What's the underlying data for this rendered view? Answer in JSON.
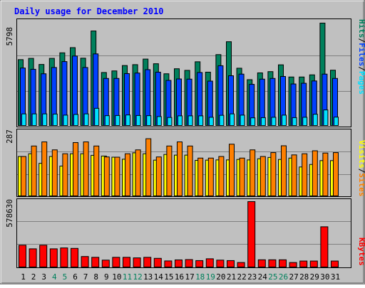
{
  "title": "Daily usage for December 2010",
  "colors": {
    "background": "#C0C0C0",
    "title": "#0000FF",
    "hits": "#00805C",
    "files": "#0040FF",
    "pages": "#00E0FF",
    "visits": "#FFFF00",
    "sites": "#FF8000",
    "kbytes": "#FF0000",
    "weekend_label": "#00805C",
    "weekday_label": "#000000"
  },
  "panels": {
    "top": {
      "max_label": "5798",
      "legend": {
        "pages": "Pages",
        "files": "Files",
        "hits": "Hits",
        "sep": "/"
      }
    },
    "middle": {
      "max_label": "287",
      "legend": {
        "sites": "Sites",
        "visits": "Visits",
        "sep": "/"
      }
    },
    "bottom": {
      "max_label": "578630",
      "legend": {
        "kbytes": "KBytes"
      }
    }
  },
  "chart_data": [
    {
      "type": "bar",
      "title": "Daily usage for December 2010",
      "categories": [
        "1",
        "2",
        "3",
        "4",
        "5",
        "6",
        "7",
        "8",
        "9",
        "10",
        "11",
        "12",
        "13",
        "14",
        "15",
        "16",
        "17",
        "18",
        "19",
        "20",
        "21",
        "22",
        "23",
        "24",
        "25",
        "26",
        "27",
        "28",
        "29",
        "30",
        "31"
      ],
      "weekend_days": [
        "4",
        "5",
        "11",
        "12",
        "18",
        "19",
        "25",
        "26"
      ],
      "ylim": [
        0,
        5798
      ],
      "series": [
        {
          "name": "Hits",
          "values": [
            3680,
            3750,
            3410,
            3750,
            4060,
            4350,
            3760,
            5280,
            2960,
            3050,
            3350,
            3400,
            3710,
            3450,
            2890,
            3170,
            3080,
            3560,
            2980,
            3960,
            4680,
            3200,
            2560,
            2940,
            3010,
            3390,
            2710,
            2710,
            2830,
            5720,
            3090
          ]
        },
        {
          "name": "Files",
          "values": [
            3210,
            3140,
            2890,
            3240,
            3570,
            3880,
            3240,
            4000,
            2630,
            2630,
            2900,
            2930,
            3120,
            2980,
            2520,
            2600,
            2590,
            2960,
            2480,
            3340,
            2780,
            2870,
            2300,
            2590,
            2630,
            2740,
            2320,
            2360,
            2490,
            2870,
            2630
          ]
        },
        {
          "name": "Pages",
          "values": [
            650,
            650,
            650,
            640,
            580,
            620,
            650,
            960,
            550,
            560,
            590,
            560,
            550,
            500,
            450,
            540,
            540,
            540,
            460,
            570,
            650,
            580,
            430,
            440,
            460,
            580,
            440,
            460,
            630,
            870,
            470
          ]
        }
      ]
    },
    {
      "type": "bar",
      "categories": [
        "1",
        "2",
        "3",
        "4",
        "5",
        "6",
        "7",
        "8",
        "9",
        "10",
        "11",
        "12",
        "13",
        "14",
        "15",
        "16",
        "17",
        "18",
        "19",
        "20",
        "21",
        "22",
        "23",
        "24",
        "25",
        "26",
        "27",
        "28",
        "29",
        "30",
        "31"
      ],
      "ylim": [
        0,
        287
      ],
      "series": [
        {
          "name": "Visits",
          "values": [
            173,
            185,
            143,
            173,
            131,
            185,
            185,
            178,
            175,
            170,
            161,
            189,
            185,
            157,
            182,
            179,
            179,
            156,
            157,
            158,
            158,
            160,
            158,
            163,
            169,
            160,
            166,
            127,
            138,
            155,
            155
          ]
        },
        {
          "name": "Sites",
          "values": [
            173,
            219,
            237,
            202,
            185,
            234,
            237,
            219,
            171,
            170,
            185,
            202,
            251,
            171,
            219,
            237,
            219,
            166,
            166,
            173,
            227,
            166,
            202,
            173,
            190,
            220,
            180,
            185,
            198,
            188,
            190
          ]
        }
      ]
    },
    {
      "type": "bar",
      "categories": [
        "1",
        "2",
        "3",
        "4",
        "5",
        "6",
        "7",
        "8",
        "9",
        "10",
        "11",
        "12",
        "13",
        "14",
        "15",
        "16",
        "17",
        "18",
        "19",
        "20",
        "21",
        "22",
        "23",
        "24",
        "25",
        "26",
        "27",
        "28",
        "29",
        "30",
        "31"
      ],
      "ylim": [
        0,
        578630
      ],
      "series": [
        {
          "name": "KBytes",
          "values": [
            193000,
            161000,
            193000,
            161000,
            169000,
            165000,
            93000,
            86000,
            61000,
            86000,
            86000,
            81000,
            86000,
            77000,
            54000,
            63000,
            66000,
            57000,
            73000,
            61000,
            57000,
            40000,
            578630,
            64000,
            64000,
            64000,
            40000,
            53000,
            53000,
            356000,
            53000
          ]
        }
      ]
    }
  ]
}
